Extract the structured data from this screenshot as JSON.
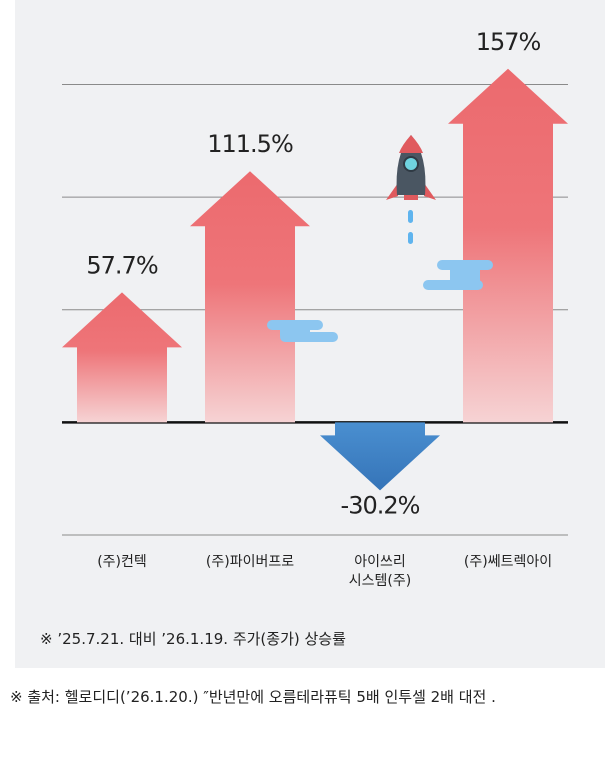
{
  "chart_data": {
    "type": "arrow-bar",
    "categories": [
      "(주)컨텍",
      "(주)파이버프로",
      "아이쓰리\n시스템(주)",
      "(주)쎄트렉아이"
    ],
    "values": [
      57.7,
      111.5,
      -30.2,
      157
    ],
    "value_labels": [
      "57.7%",
      "111.5%",
      "-30.2%",
      "157%"
    ],
    "positive_color": "#ec6a6e",
    "negative_color": "#3f80c2",
    "ylim": [
      -50,
      160
    ],
    "yticks": [
      -50,
      0,
      50,
      100,
      150
    ],
    "grid": true,
    "note": "※  ’25.7.21. 대비 ’26.1.19. 주가(종가) 상승률",
    "source": "※ 출처: 헬로디디(’26.1.20.) ″반년만에 오름테라퓨틱 5배 인투셀 2배 대전 ."
  }
}
